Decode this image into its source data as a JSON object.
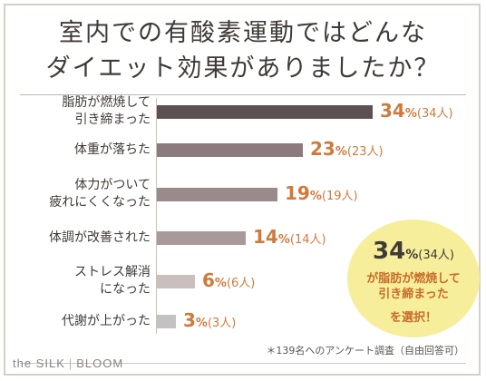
{
  "title_line1": "室内での有酸素運動ではどんな",
  "title_line2": "ダイエット効果がありましたか？",
  "chart_data": {
    "type": "bar",
    "orientation": "horizontal",
    "categories": [
      [
        "脂肪が燃焼して",
        "引き締まった"
      ],
      [
        "体重が落ちた"
      ],
      [
        "体力がついて",
        "疲れにくくなった"
      ],
      [
        "体調が改善された"
      ],
      [
        "ストレス解消",
        "になった"
      ],
      [
        "代謝が上がった"
      ]
    ],
    "values": [
      34,
      23,
      19,
      14,
      6,
      3
    ],
    "counts": [
      "(34人)",
      "(23人)",
      "(19人)",
      "(14人)",
      "(6人)",
      "(3人)"
    ],
    "unit": "%",
    "xlim": [
      0,
      100
    ],
    "bar_colors": [
      "#5e5052",
      "#8c7b7e",
      "#9a8a8c",
      "#a89a9b",
      "#c9bfbf",
      "#c3c1c1"
    ]
  },
  "callout": {
    "percent": "34",
    "unit": "%",
    "count": "(34人)",
    "line1": "が脂肪が燃焼して",
    "line2": "引き締まった",
    "line3": "を選択！"
  },
  "footnote": "＊139名へのアンケート調査（自由回答可）",
  "brand": {
    "left": "the SILK",
    "separator": "|",
    "right": "BLOOM"
  },
  "colors": {
    "accent": "#cf7a3c",
    "callout_bg": "#f7ee9b",
    "text": "#3f3a37"
  }
}
